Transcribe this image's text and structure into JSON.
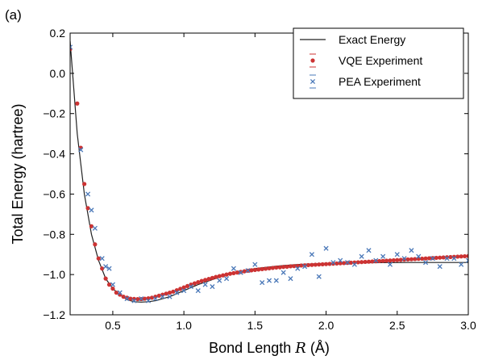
{
  "chart_data": {
    "type": "scatter",
    "panel_label": "(a)",
    "xlabel_prefix": "Bond Length ",
    "xlabel_var": "R",
    "xlabel_suffix": " (Å)",
    "ylabel": "Total Energy (hartree)",
    "xlim": [
      0.2,
      3.0
    ],
    "ylim": [
      -1.2,
      0.2
    ],
    "xticks": [
      0.5,
      1.0,
      1.5,
      2.0,
      2.5,
      3.0
    ],
    "xtick_labels": [
      "0.5",
      "1.0",
      "1.5",
      "2.0",
      "2.5",
      "3.0"
    ],
    "yticks": [
      -1.2,
      -1.0,
      -0.8,
      -0.6,
      -0.4,
      -0.2,
      0.0,
      0.2
    ],
    "ytick_labels": [
      "−1.2",
      "−1.0",
      "−0.8",
      "−0.6",
      "−0.4",
      "−0.2",
      "0.0",
      "0.2"
    ],
    "legend_position": "top-right",
    "grid": false,
    "series": [
      {
        "name": "Exact Energy",
        "kind": "line",
        "color": "#222222",
        "x": [
          0.2,
          0.25,
          0.3,
          0.35,
          0.4,
          0.45,
          0.5,
          0.55,
          0.6,
          0.65,
          0.7,
          0.75,
          0.8,
          0.85,
          0.9,
          1.0,
          1.1,
          1.2,
          1.3,
          1.4,
          1.5,
          1.6,
          1.7,
          1.8,
          1.9,
          2.0,
          2.2,
          2.4,
          2.6,
          2.8,
          3.0
        ],
        "y": [
          0.16,
          -0.3,
          -0.6,
          -0.8,
          -0.93,
          -1.02,
          -1.07,
          -1.1,
          -1.125,
          -1.135,
          -1.137,
          -1.135,
          -1.13,
          -1.12,
          -1.11,
          -1.08,
          -1.05,
          -1.025,
          -1.0,
          -0.985,
          -0.97,
          -0.962,
          -0.955,
          -0.95,
          -0.947,
          -0.944,
          -0.942,
          -0.941,
          -0.94,
          -0.94,
          -0.94
        ]
      },
      {
        "name": "VQE Experiment",
        "kind": "markers",
        "marker": "dot",
        "color": "#cc3333",
        "x": [
          0.2,
          0.25,
          0.275,
          0.3,
          0.325,
          0.35,
          0.375,
          0.4,
          0.425,
          0.45,
          0.475,
          0.5,
          0.525,
          0.55,
          0.575,
          0.6,
          0.625,
          0.65,
          0.675,
          0.7,
          0.725,
          0.75,
          0.775,
          0.8,
          0.825,
          0.85,
          0.875,
          0.9,
          0.925,
          0.95,
          0.975,
          1.0,
          1.025,
          1.05,
          1.075,
          1.1,
          1.125,
          1.15,
          1.175,
          1.2,
          1.225,
          1.25,
          1.275,
          1.3,
          1.325,
          1.35,
          1.375,
          1.4,
          1.425,
          1.45,
          1.475,
          1.5,
          1.525,
          1.55,
          1.575,
          1.6,
          1.625,
          1.65,
          1.675,
          1.7,
          1.725,
          1.75,
          1.775,
          1.8,
          1.825,
          1.85,
          1.875,
          1.9,
          1.925,
          1.95,
          1.975,
          2.0,
          2.025,
          2.05,
          2.075,
          2.1,
          2.125,
          2.15,
          2.175,
          2.2,
          2.225,
          2.25,
          2.275,
          2.3,
          2.325,
          2.35,
          2.375,
          2.4,
          2.425,
          2.45,
          2.475,
          2.5,
          2.525,
          2.55,
          2.575,
          2.6,
          2.625,
          2.65,
          2.675,
          2.7,
          2.725,
          2.75,
          2.775,
          2.8,
          2.825,
          2.85,
          2.875,
          2.9,
          2.925,
          2.95,
          2.975,
          3.0
        ],
        "y": [
          0.12,
          -0.15,
          -0.37,
          -0.55,
          -0.67,
          -0.76,
          -0.85,
          -0.92,
          -0.97,
          -1.02,
          -1.05,
          -1.07,
          -1.09,
          -1.1,
          -1.11,
          -1.115,
          -1.12,
          -1.121,
          -1.122,
          -1.122,
          -1.12,
          -1.118,
          -1.115,
          -1.11,
          -1.105,
          -1.1,
          -1.095,
          -1.09,
          -1.085,
          -1.078,
          -1.071,
          -1.064,
          -1.057,
          -1.05,
          -1.044,
          -1.038,
          -1.032,
          -1.027,
          -1.022,
          -1.017,
          -1.012,
          -1.008,
          -1.004,
          -1.0,
          -0.996,
          -0.993,
          -0.99,
          -0.987,
          -0.984,
          -0.981,
          -0.979,
          -0.977,
          -0.975,
          -0.973,
          -0.971,
          -0.969,
          -0.967,
          -0.965,
          -0.964,
          -0.962,
          -0.961,
          -0.959,
          -0.958,
          -0.957,
          -0.955,
          -0.954,
          -0.953,
          -0.952,
          -0.951,
          -0.95,
          -0.949,
          -0.948,
          -0.947,
          -0.946,
          -0.945,
          -0.944,
          -0.943,
          -0.942,
          -0.941,
          -0.94,
          -0.939,
          -0.938,
          -0.937,
          -0.936,
          -0.935,
          -0.934,
          -0.933,
          -0.932,
          -0.931,
          -0.93,
          -0.929,
          -0.928,
          -0.927,
          -0.926,
          -0.925,
          -0.924,
          -0.923,
          -0.922,
          -0.921,
          -0.92,
          -0.919,
          -0.918,
          -0.917,
          -0.916,
          -0.915,
          -0.914,
          -0.913,
          -0.912,
          -0.911,
          -0.91,
          -0.909,
          -0.908
        ]
      },
      {
        "name": "PEA Experiment",
        "kind": "markers",
        "marker": "x",
        "color": "#4a78b8",
        "x": [
          0.2,
          0.275,
          0.325,
          0.35,
          0.375,
          0.425,
          0.45,
          0.475,
          0.5,
          0.55,
          0.6,
          0.65,
          0.7,
          0.75,
          0.8,
          0.85,
          0.9,
          0.95,
          1.0,
          1.05,
          1.1,
          1.15,
          1.2,
          1.25,
          1.3,
          1.35,
          1.4,
          1.45,
          1.5,
          1.55,
          1.6,
          1.65,
          1.7,
          1.75,
          1.8,
          1.85,
          1.9,
          1.95,
          2.0,
          2.05,
          2.1,
          2.15,
          2.2,
          2.25,
          2.3,
          2.35,
          2.4,
          2.45,
          2.5,
          2.55,
          2.6,
          2.65,
          2.7,
          2.75,
          2.8,
          2.85,
          2.9,
          2.95,
          3.0
        ],
        "y": [
          0.13,
          -0.38,
          -0.6,
          -0.68,
          -0.77,
          -0.92,
          -0.96,
          -0.97,
          -1.05,
          -1.09,
          -1.12,
          -1.13,
          -1.12,
          -1.13,
          -1.12,
          -1.11,
          -1.11,
          -1.09,
          -1.08,
          -1.06,
          -1.08,
          -1.05,
          -1.06,
          -1.03,
          -1.02,
          -0.97,
          -0.99,
          -0.98,
          -0.95,
          -1.04,
          -1.03,
          -1.03,
          -0.99,
          -1.02,
          -0.97,
          -0.96,
          -0.9,
          -1.01,
          -0.87,
          -0.94,
          -0.93,
          -0.94,
          -0.95,
          -0.91,
          -0.88,
          -0.93,
          -0.91,
          -0.95,
          -0.9,
          -0.92,
          -0.88,
          -0.91,
          -0.94,
          -0.92,
          -0.96,
          -0.92,
          -0.92,
          -0.95,
          -0.93
        ]
      }
    ]
  }
}
